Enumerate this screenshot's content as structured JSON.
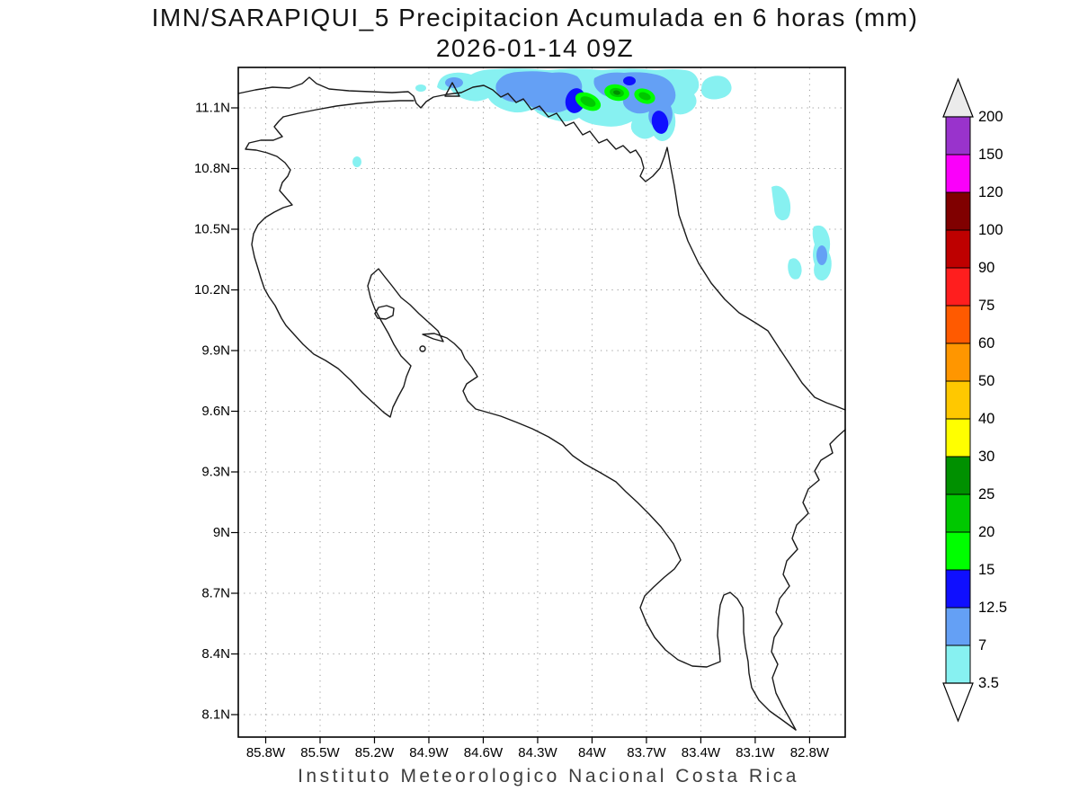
{
  "title": {
    "line1": "IMN/SARAPIQUI_5 Precipitacion Acumulada en 6 horas (mm)",
    "line2": "2026-01-14 09Z"
  },
  "caption": "Instituto Meteorologico Nacional Costa Rica",
  "axes": {
    "lat_labels": [
      "11.1N",
      "10.8N",
      "10.5N",
      "10.2N",
      "9.9N",
      "9.6N",
      "9.3N",
      "9N",
      "8.7N",
      "8.4N",
      "8.1N"
    ],
    "lon_labels": [
      "85.8W",
      "85.5W",
      "85.2W",
      "84.9W",
      "84.6W",
      "84.3W",
      "84W",
      "83.7W",
      "83.4W",
      "83.1W",
      "82.8W"
    ]
  },
  "colorbar": {
    "boundary_labels": [
      "200",
      "150",
      "120",
      "100",
      "90",
      "75",
      "60",
      "50",
      "40",
      "30",
      "25",
      "20",
      "15",
      "12.5",
      "7",
      "3.5"
    ],
    "palette": {
      "3.5": "#87F1F1",
      "7": "#64A0F5",
      "12.5": "#0F0FFF",
      "15": "#00FF00",
      "20": "#00C800",
      "25": "#009000",
      "30": "#FFFF00",
      "40": "#FFC800",
      "50": "#FF9600",
      "60": "#FF5A00",
      "75": "#FF1E1E",
      "90": "#BE0000",
      "100": "#800000",
      "120": "#FA00FA",
      "150": "#9933CC",
      "200": "#EBEBEB"
    },
    "below_min_color": "#FFFFFF"
  },
  "colors": {
    "grid": "#999999",
    "coastline": "#1a1a1a",
    "frame": "#000000"
  }
}
